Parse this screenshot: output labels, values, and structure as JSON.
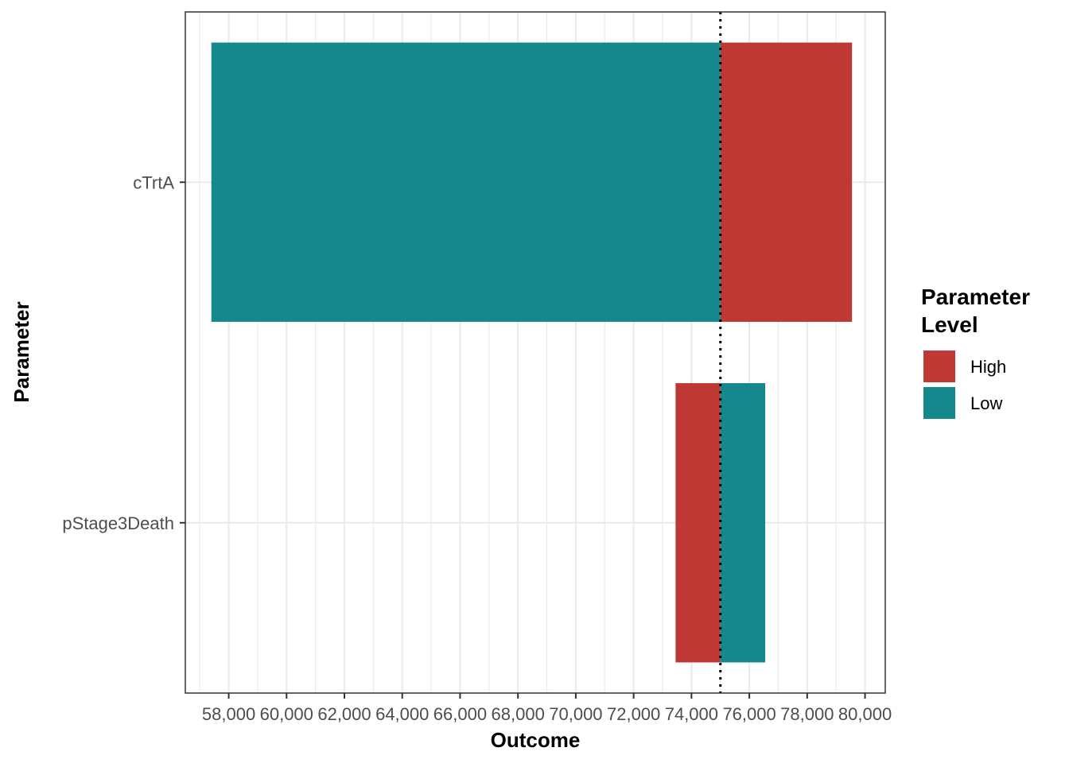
{
  "chart_data": {
    "type": "bar",
    "orientation": "horizontal",
    "chart_style": "tornado",
    "xlabel": "Outcome",
    "ylabel": "Parameter",
    "xlim": [
      56500,
      80700
    ],
    "x_ticks": [
      58000,
      60000,
      62000,
      64000,
      66000,
      68000,
      70000,
      72000,
      74000,
      76000,
      78000,
      80000
    ],
    "x_tick_labels": [
      "58,000",
      "60,000",
      "62,000",
      "64,000",
      "66,000",
      "68,000",
      "70,000",
      "72,000",
      "74,000",
      "76,000",
      "78,000",
      "80,000"
    ],
    "base_value": 75000,
    "reference_line": "dotted",
    "grid": true,
    "categories": [
      "cTrtA",
      "pStage3Death"
    ],
    "series": [
      {
        "name": "High",
        "color": "#BE3834",
        "values": [
          79550,
          73450
        ]
      },
      {
        "name": "Low",
        "color": "#14888C",
        "values": [
          57400,
          76550
        ]
      }
    ],
    "legend": {
      "title_line1": "Parameter",
      "title_line2": "Level",
      "placement": "right",
      "entries": [
        "High",
        "Low"
      ]
    }
  }
}
